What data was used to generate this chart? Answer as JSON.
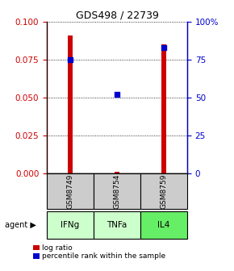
{
  "title": "GDS498 / 22739",
  "samples": [
    "GSM8749",
    "GSM8754",
    "GSM8759"
  ],
  "agents": [
    "IFNg",
    "TNFa",
    "IL4"
  ],
  "log_ratios": [
    0.091,
    0.001,
    0.085
  ],
  "percentile_ranks": [
    75.0,
    52.0,
    83.0
  ],
  "ylim_left": [
    0,
    0.1
  ],
  "ylim_right": [
    0,
    100
  ],
  "yticks_left": [
    0,
    0.025,
    0.05,
    0.075,
    0.1
  ],
  "yticks_right": [
    0,
    25,
    50,
    75,
    100
  ],
  "bar_color": "#cc0000",
  "point_color": "#0000cc",
  "agent_colors": [
    "#ccffcc",
    "#ccffcc",
    "#66ee66"
  ],
  "sample_bg": "#cccccc",
  "bar_width": 0.12,
  "figsize": [
    2.9,
    3.36
  ],
  "dpi": 100
}
